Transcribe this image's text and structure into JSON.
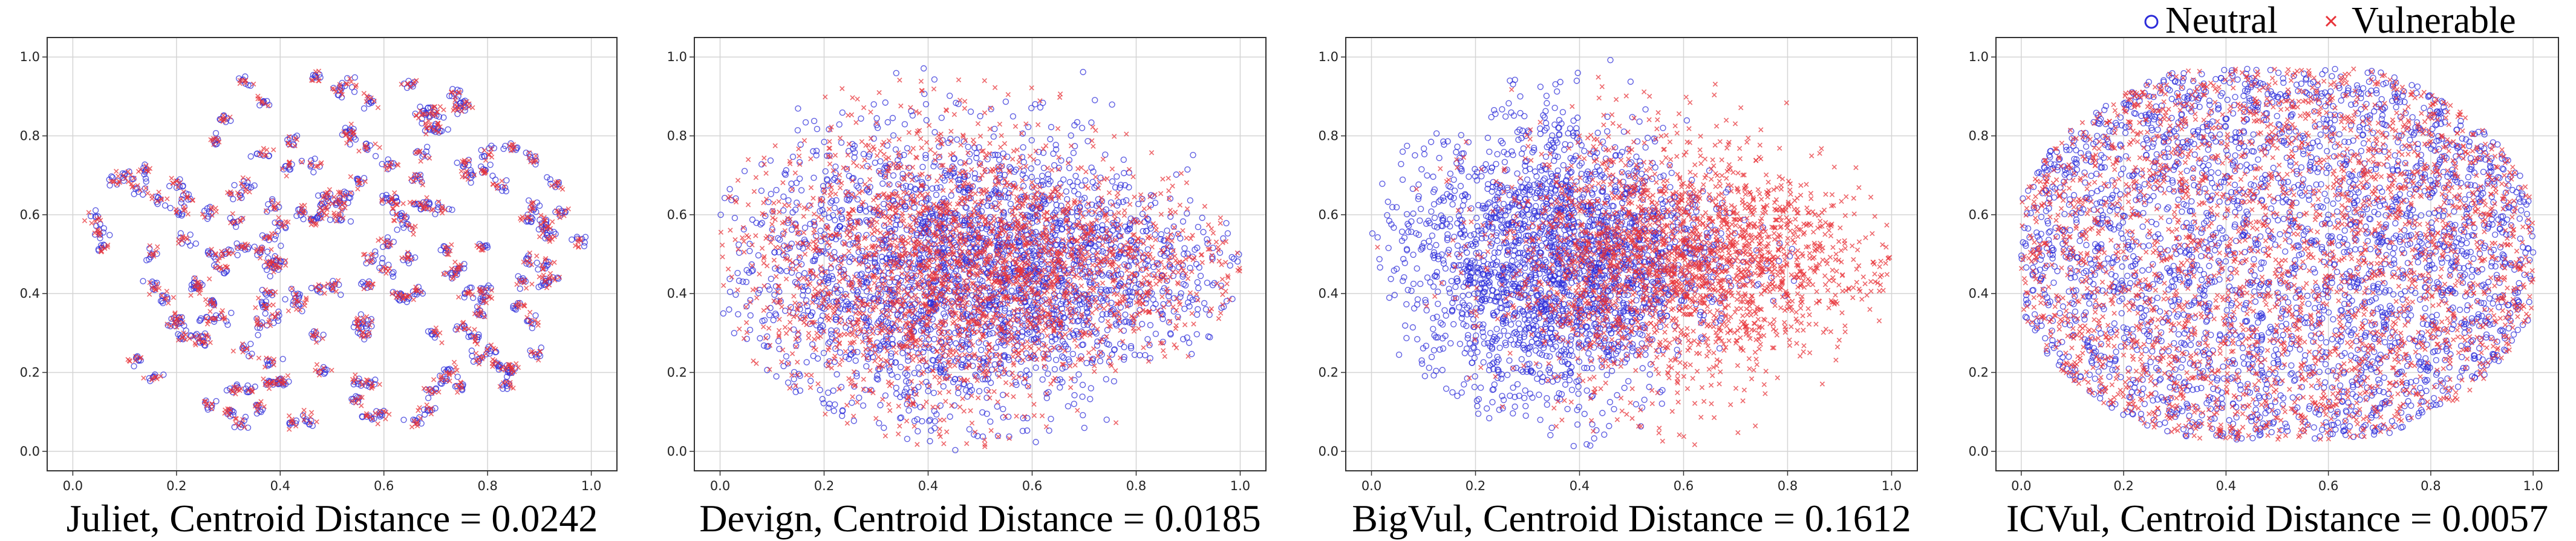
{
  "legend": {
    "neutral_label": "Neutral",
    "vulnerable_label": "Vulnerable",
    "neutral_color": "#2b2bd9",
    "vulnerable_color": "#e8343a"
  },
  "chart_data": [
    {
      "type": "scatter",
      "dataset": "Juliet",
      "title": "Juliet, Centroid Distance = 0.0242",
      "centroid_distance": 0.0242,
      "xlim": [
        0.0,
        1.0
      ],
      "ylim": [
        0.0,
        1.0
      ],
      "xticks": [
        "0.0",
        "0.2",
        "0.4",
        "0.6",
        "0.8",
        "1.0"
      ],
      "yticks": [
        "0.0",
        "0.2",
        "0.4",
        "0.6",
        "0.8",
        "1.0"
      ],
      "grid": true,
      "series": [
        {
          "name": "Neutral",
          "marker": "circle",
          "cloud": "clustered",
          "center": [
            0.5,
            0.5
          ],
          "spread": [
            0.5,
            0.48
          ],
          "n_clusters": 170,
          "seed": 11,
          "points_per_cluster": 7
        },
        {
          "name": "Vulnerable",
          "marker": "x",
          "cloud": "clustered",
          "center": [
            0.5,
            0.5
          ],
          "spread": [
            0.5,
            0.48
          ],
          "n_clusters": 170,
          "seed": 11,
          "points_per_cluster": 7
        }
      ]
    },
    {
      "type": "scatter",
      "dataset": "Devign",
      "title": "Devign, Centroid Distance = 0.0185",
      "centroid_distance": 0.0185,
      "xlim": [
        0.0,
        1.0
      ],
      "ylim": [
        0.0,
        1.0
      ],
      "xticks": [
        "0.0",
        "0.2",
        "0.4",
        "0.6",
        "0.8",
        "1.0"
      ],
      "yticks": [
        "0.0",
        "0.2",
        "0.4",
        "0.6",
        "0.8",
        "1.0"
      ],
      "grid": true,
      "series": [
        {
          "name": "Neutral",
          "marker": "circle",
          "cloud": "wedge",
          "center": [
            0.48,
            0.45
          ],
          "spread": [
            0.5,
            0.45
          ],
          "n_points": 2600,
          "seed": 23
        },
        {
          "name": "Vulnerable",
          "marker": "x",
          "cloud": "wedge",
          "center": [
            0.46,
            0.46
          ],
          "spread": [
            0.5,
            0.45
          ],
          "n_points": 2600,
          "seed": 37
        }
      ]
    },
    {
      "type": "scatter",
      "dataset": "BigVul",
      "title": "BigVul, Centroid Distance = 0.1612",
      "centroid_distance": 0.1612,
      "xlim": [
        0.0,
        1.0
      ],
      "ylim": [
        0.0,
        1.0
      ],
      "xticks": [
        "0.0",
        "0.2",
        "0.4",
        "0.6",
        "0.8",
        "1.0"
      ],
      "yticks": [
        "0.0",
        "0.2",
        "0.4",
        "0.6",
        "0.8",
        "1.0"
      ],
      "grid": true,
      "series": [
        {
          "name": "Neutral",
          "marker": "circle",
          "cloud": "wedge",
          "center": [
            0.36,
            0.48
          ],
          "spread": [
            0.34,
            0.45
          ],
          "n_points": 2300,
          "seed": 41
        },
        {
          "name": "Vulnerable",
          "marker": "x",
          "cloud": "wedge",
          "center": [
            0.6,
            0.48
          ],
          "spread": [
            0.4,
            0.4
          ],
          "n_points": 2300,
          "seed": 53
        }
      ]
    },
    {
      "type": "scatter",
      "dataset": "ICVul",
      "title": "ICVul, Centroid Distance = 0.0057",
      "centroid_distance": 0.0057,
      "xlim": [
        0.0,
        1.0
      ],
      "ylim": [
        0.0,
        1.0
      ],
      "xticks": [
        "0.0",
        "0.2",
        "0.4",
        "0.6",
        "0.8",
        "1.0"
      ],
      "yticks": [
        "0.0",
        "0.2",
        "0.4",
        "0.6",
        "0.8",
        "1.0"
      ],
      "grid": true,
      "series": [
        {
          "name": "Neutral",
          "marker": "circle",
          "cloud": "ellipse",
          "center": [
            0.5,
            0.5
          ],
          "spread": [
            0.5,
            0.47
          ],
          "n_points": 2800,
          "seed": 61
        },
        {
          "name": "Vulnerable",
          "marker": "x",
          "cloud": "ellipse",
          "center": [
            0.5,
            0.5
          ],
          "spread": [
            0.5,
            0.47
          ],
          "n_points": 2800,
          "seed": 71
        }
      ]
    }
  ]
}
